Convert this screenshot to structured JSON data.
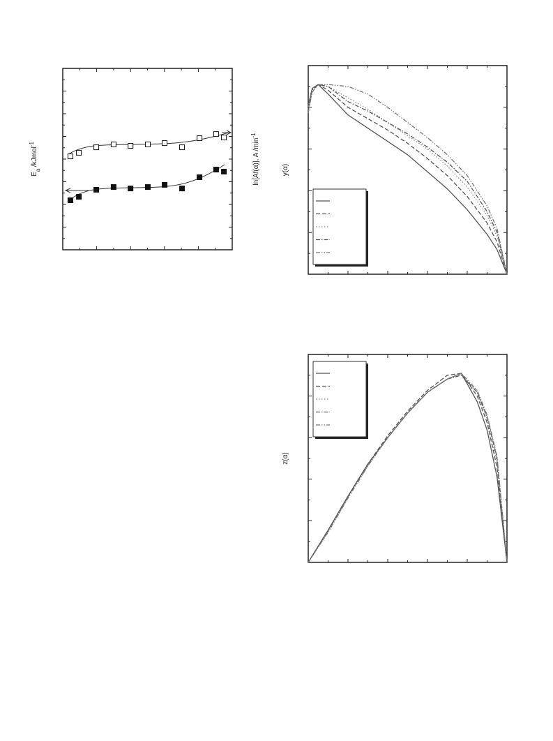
{
  "chart_data": [
    {
      "type": "scatter",
      "y_label": [
        "E",
        "a",
        " /kJmol",
        "-1"
      ],
      "y2_label": [
        "ln[Af(α)], A /min",
        "-1"
      ],
      "x": [
        0.045,
        0.095,
        0.198,
        0.3,
        0.4,
        0.502,
        0.601,
        0.704,
        0.807,
        0.905,
        0.951
      ],
      "xlim": [
        0,
        1
      ],
      "ylim": [
        0,
        1
      ],
      "y2lim": [
        0,
        1
      ],
      "series": [
        {
          "marker": "filled-square",
          "color": "#111111",
          "values": [
            0.273,
            0.292,
            0.331,
            0.346,
            0.338,
            0.346,
            0.358,
            0.338,
            0.4,
            0.442,
            0.431
          ]
        },
        {
          "marker": "open-square",
          "color": "#111111",
          "axis": "y2",
          "values": [
            0.515,
            0.535,
            0.565,
            0.581,
            0.573,
            0.581,
            0.588,
            0.565,
            0.615,
            0.638,
            0.619
          ]
        }
      ]
    },
    {
      "type": "line",
      "y_label": "y(α)",
      "x": [
        0,
        0.02,
        0.05,
        0.1,
        0.2,
        0.3,
        0.4,
        0.5,
        0.6,
        0.7,
        0.8,
        0.9,
        0.95,
        1
      ],
      "xlim": [
        0,
        1
      ],
      "ylim": [
        0,
        1.1
      ],
      "legend": "lower-left",
      "series": [
        {
          "color": "#555555",
          "dash": "solid",
          "values": [
            0.89,
            0.98,
            1.0,
            0.95,
            0.84,
            0.77,
            0.7,
            0.63,
            0.54,
            0.45,
            0.34,
            0.21,
            0.13,
            0
          ]
        },
        {
          "color": "#555555",
          "dash": "dashed",
          "values": [
            0.88,
            0.98,
            1.0,
            0.97,
            0.88,
            0.82,
            0.76,
            0.69,
            0.61,
            0.52,
            0.41,
            0.27,
            0.17,
            0
          ]
        },
        {
          "color": "#888888",
          "dash": "dotted",
          "values": [
            0.87,
            0.98,
            1.0,
            0.99,
            0.93,
            0.87,
            0.8,
            0.73,
            0.66,
            0.57,
            0.46,
            0.31,
            0.2,
            0
          ]
        },
        {
          "color": "#555555",
          "dash": "dash-dot",
          "values": [
            0.86,
            0.97,
            1.0,
            0.99,
            0.91,
            0.86,
            0.8,
            0.74,
            0.67,
            0.59,
            0.49,
            0.33,
            0.22,
            0
          ]
        },
        {
          "color": "#777777",
          "dash": "dash-dot-dot",
          "values": [
            0.85,
            0.96,
            1.0,
            1.0,
            0.99,
            0.95,
            0.88,
            0.8,
            0.72,
            0.63,
            0.52,
            0.36,
            0.24,
            0
          ]
        }
      ]
    },
    {
      "type": "line",
      "y_label": "z(α)",
      "x": [
        0,
        0.1,
        0.2,
        0.3,
        0.4,
        0.5,
        0.6,
        0.7,
        0.77,
        0.85,
        0.9,
        0.95,
        1
      ],
      "xlim": [
        0,
        1
      ],
      "ylim": [
        0,
        1.1
      ],
      "legend": "upper-left",
      "series": [
        {
          "color": "#555555",
          "dash": "solid",
          "values": [
            0,
            0.17,
            0.35,
            0.52,
            0.66,
            0.79,
            0.9,
            0.97,
            1.0,
            0.85,
            0.7,
            0.45,
            0
          ]
        },
        {
          "color": "#555555",
          "dash": "dashed",
          "values": [
            0,
            0.17,
            0.35,
            0.52,
            0.67,
            0.8,
            0.91,
            0.99,
            1.0,
            0.88,
            0.74,
            0.5,
            0
          ]
        },
        {
          "color": "#888888",
          "dash": "dotted",
          "values": [
            0,
            0.16,
            0.34,
            0.51,
            0.66,
            0.79,
            0.9,
            0.97,
            1.0,
            0.9,
            0.76,
            0.53,
            0
          ]
        },
        {
          "color": "#555555",
          "dash": "dash-dot",
          "values": [
            0,
            0.17,
            0.35,
            0.52,
            0.66,
            0.79,
            0.9,
            0.97,
            0.99,
            0.9,
            0.77,
            0.55,
            0
          ]
        },
        {
          "color": "#777777",
          "dash": "dash-dot-dot",
          "values": [
            0,
            0.16,
            0.34,
            0.51,
            0.66,
            0.79,
            0.9,
            0.97,
            1.0,
            0.91,
            0.78,
            0.56,
            0
          ]
        }
      ]
    }
  ]
}
